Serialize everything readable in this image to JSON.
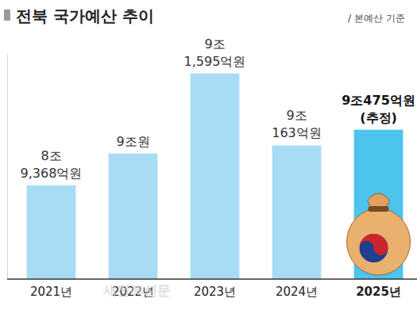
{
  "chart_data": {
    "type": "bar",
    "title": "전북 국가예산 추이",
    "subtitle": "/ 본예산 기준",
    "annotations": [
      "새전북신문"
    ],
    "categories": [
      "2021년",
      "2022년",
      "2023년",
      "2024년",
      "2025년"
    ],
    "values": [
      89368,
      90000,
      91595,
      90163,
      90475
    ],
    "value_labels": [
      "8조 9,368억원",
      "9조원",
      "9조 1,595억원",
      "9조 163억원",
      "9조475억원 (추정)"
    ],
    "colors": [
      "#a8dcf4",
      "#a8dcf4",
      "#a8dcf4",
      "#a8dcf4",
      "#4cc4ee"
    ],
    "ylim": [
      87500,
      92000
    ],
    "yticks": [],
    "grid": false,
    "data_labels": true,
    "tick_labels": "x"
  }
}
